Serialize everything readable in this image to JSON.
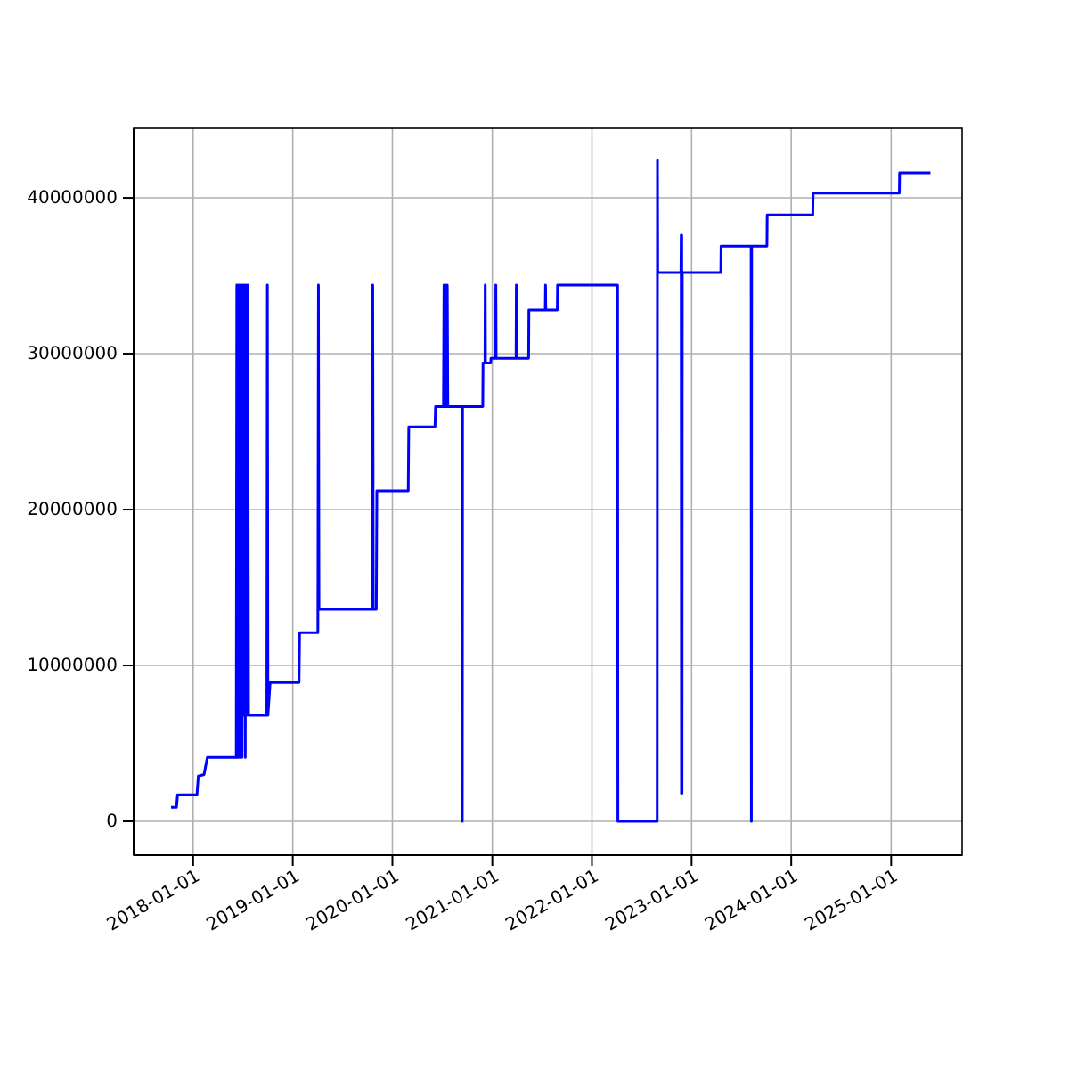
{
  "chart_data": {
    "type": "line",
    "x": [
      "2017-10-12",
      "2017-11-01",
      "2017-11-05",
      "2018-01-15",
      "2018-01-20",
      "2018-02-10",
      "2018-02-22",
      "2018-06-08",
      "2018-06-10",
      "2018-06-12",
      "2018-06-14",
      "2018-06-17",
      "2018-06-20",
      "2018-06-23",
      "2018-06-26",
      "2018-06-29",
      "2018-07-02",
      "2018-07-05",
      "2018-07-08",
      "2018-07-11",
      "2018-07-14",
      "2018-07-17",
      "2018-07-20",
      "2018-07-23",
      "2018-09-28",
      "2018-09-30",
      "2018-10-02",
      "2018-10-10",
      "2019-01-24",
      "2019-01-26",
      "2019-04-03",
      "2019-04-05",
      "2019-04-07",
      "2019-10-19",
      "2019-10-21",
      "2019-10-23",
      "2019-11-03",
      "2019-11-05",
      "2020-02-28",
      "2020-03-01",
      "2020-06-05",
      "2020-06-07",
      "2020-07-06",
      "2020-07-08",
      "2020-07-10",
      "2020-07-13",
      "2020-07-15",
      "2020-07-20",
      "2020-07-22",
      "2020-09-12",
      "2020-09-13",
      "2020-09-14",
      "2020-11-27",
      "2020-11-28",
      "2020-12-05",
      "2020-12-06",
      "2020-12-07",
      "2020-12-26",
      "2020-12-27",
      "2021-01-13",
      "2021-01-14",
      "2021-01-15",
      "2021-03-29",
      "2021-03-30",
      "2021-03-31",
      "2021-05-14",
      "2021-05-15",
      "2021-07-14",
      "2021-07-15",
      "2021-07-16",
      "2021-08-27",
      "2021-08-28",
      "2022-04-05",
      "2022-04-06",
      "2022-08-28",
      "2022-08-29",
      "2022-08-30",
      "2022-11-23",
      "2022-11-24",
      "2022-11-25",
      "2022-11-26",
      "2022-11-27",
      "2022-11-28",
      "2023-04-18",
      "2023-04-19",
      "2023-08-07",
      "2023-08-08",
      "2023-08-09",
      "2023-10-04",
      "2023-10-05",
      "2024-03-20",
      "2024-03-21",
      "2025-01-31",
      "2025-02-01",
      "2025-05-25"
    ],
    "series": [
      {
        "color": "#0000ff",
        "values": [
          900000,
          900000,
          1700000,
          1700000,
          2900000,
          3000000,
          4100000,
          4100000,
          34400000,
          4100000,
          34400000,
          4100000,
          34400000,
          4100000,
          34400000,
          4100000,
          34400000,
          6800000,
          34400000,
          4100000,
          34400000,
          6800000,
          34400000,
          6800000,
          6800000,
          34400000,
          6800000,
          8900000,
          8900000,
          12100000,
          12100000,
          34400000,
          13600000,
          13600000,
          34400000,
          13600000,
          13600000,
          21200000,
          21200000,
          25300000,
          25300000,
          26600000,
          26600000,
          34400000,
          26600000,
          34400000,
          26600000,
          34400000,
          26600000,
          26600000,
          0,
          26600000,
          26600000,
          29400000,
          29400000,
          34400000,
          29400000,
          29400000,
          29700000,
          29700000,
          34400000,
          29700000,
          29700000,
          34400000,
          29700000,
          29700000,
          32800000,
          32800000,
          34400000,
          32800000,
          32800000,
          34400000,
          34400000,
          0,
          0,
          42400000,
          35200000,
          35200000,
          37600000,
          1800000,
          37600000,
          1800000,
          35200000,
          35200000,
          36900000,
          36900000,
          0,
          36900000,
          36900000,
          38900000,
          38900000,
          40300000,
          40300000,
          41600000,
          41600000
        ]
      }
    ],
    "xlim": [
      "2017-05-28",
      "2025-09-18"
    ],
    "xticks": [
      {
        "value": "2018-01-01",
        "label": "2018-01-01"
      },
      {
        "value": "2019-01-01",
        "label": "2019-01-01"
      },
      {
        "value": "2020-01-01",
        "label": "2020-01-01"
      },
      {
        "value": "2021-01-01",
        "label": "2021-01-01"
      },
      {
        "value": "2022-01-01",
        "label": "2022-01-01"
      },
      {
        "value": "2023-01-01",
        "label": "2023-01-01"
      },
      {
        "value": "2024-01-01",
        "label": "2024-01-01"
      },
      {
        "value": "2025-01-01",
        "label": "2025-01-01"
      }
    ],
    "ylim": [
      -2170000,
      44460000
    ],
    "yticks": [
      0,
      10000000,
      20000000,
      30000000,
      40000000
    ],
    "grid": true,
    "marker": "none",
    "line_style": "solid"
  }
}
